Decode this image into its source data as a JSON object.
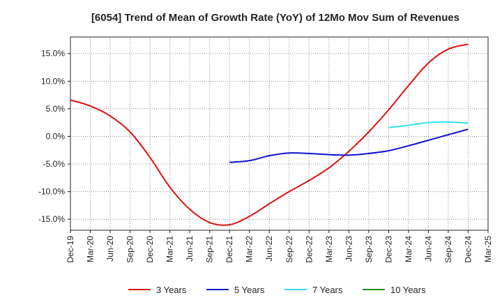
{
  "chart_data": {
    "type": "line",
    "title": "[6054]  Trend of Mean of Growth Rate (YoY) of 12Mo Mov Sum of Revenues",
    "xlabel": "",
    "ylabel": "",
    "ylim": [
      -17,
      18
    ],
    "yticks": [
      15,
      10,
      5,
      0,
      -5,
      -10,
      -15
    ],
    "ytick_labels": [
      "15.0%",
      "10.0%",
      "5.0%",
      "0.0%",
      "-5.0%",
      "-10.0%",
      "-15.0%"
    ],
    "x_labels": [
      "Dec-19",
      "Mar-20",
      "Jun-20",
      "Sep-20",
      "Dec-20",
      "Mar-21",
      "Jun-21",
      "Sep-21",
      "Dec-21",
      "Mar-22",
      "Jun-22",
      "Sep-22",
      "Dec-22",
      "Mar-23",
      "Jun-23",
      "Sep-23",
      "Dec-23",
      "Mar-24",
      "Jun-24",
      "Sep-24",
      "Dec-24",
      "Mar-25"
    ],
    "grid": true,
    "legend_position": "bottom",
    "series": [
      {
        "name": "3 Years",
        "color": "#dd1111",
        "points": [
          [
            0,
            6.6
          ],
          [
            1,
            5.5
          ],
          [
            2,
            3.7
          ],
          [
            3,
            0.8
          ],
          [
            4,
            -3.8
          ],
          [
            5,
            -9.2
          ],
          [
            6,
            -13.2
          ],
          [
            7,
            -15.6
          ],
          [
            8,
            -16.0
          ],
          [
            9,
            -14.5
          ],
          [
            10,
            -12.2
          ],
          [
            11,
            -10.0
          ],
          [
            12,
            -8.0
          ],
          [
            13,
            -5.7
          ],
          [
            14,
            -2.7
          ],
          [
            15,
            0.8
          ],
          [
            16,
            4.8
          ],
          [
            17,
            9.2
          ],
          [
            18,
            13.3
          ],
          [
            19,
            15.8
          ],
          [
            20,
            16.7
          ]
        ]
      },
      {
        "name": "5 Years",
        "color": "#1111cc",
        "points": [
          [
            8,
            -4.7
          ],
          [
            9,
            -4.4
          ],
          [
            10,
            -3.5
          ],
          [
            11,
            -3.0
          ],
          [
            12,
            -3.1
          ],
          [
            13,
            -3.3
          ],
          [
            14,
            -3.4
          ],
          [
            15,
            -3.1
          ],
          [
            16,
            -2.6
          ],
          [
            17,
            -1.7
          ],
          [
            18,
            -0.7
          ],
          [
            19,
            0.3
          ],
          [
            20,
            1.3
          ]
        ]
      },
      {
        "name": "7 Years",
        "color": "#33e0f0",
        "points": [
          [
            16,
            1.6
          ],
          [
            17,
            2.0
          ],
          [
            18,
            2.5
          ],
          [
            19,
            2.6
          ],
          [
            20,
            2.4
          ]
        ]
      },
      {
        "name": "10 Years",
        "color": "#228b22",
        "points": []
      }
    ]
  }
}
